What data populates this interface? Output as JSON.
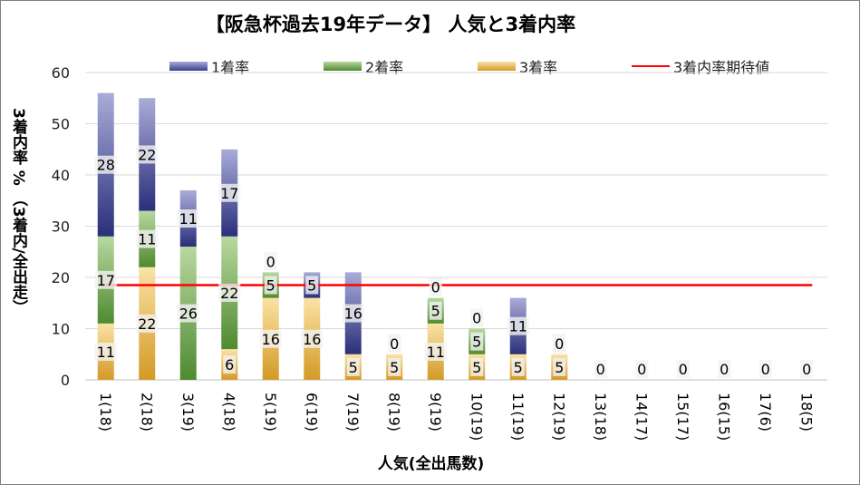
{
  "chart_data": {
    "type": "bar",
    "stacked": true,
    "title": "【阪急杯過去19年データ】 人気と3着内率",
    "xlabel": "人気(全出馬数)",
    "ylabel": "3着内率 % （3着内/全出走）",
    "ylim": [
      0,
      60
    ],
    "yticks": [
      0,
      10,
      20,
      30,
      40,
      50,
      60
    ],
    "categories": [
      "1(18)",
      "2(18)",
      "3(19)",
      "4(18)",
      "5(19)",
      "6(19)",
      "7(19)",
      "8(19)",
      "9(19)",
      "10(19)",
      "11(19)",
      "12(19)",
      "13(18)",
      "14(17)",
      "15(17)",
      "16(15)",
      "17(6)",
      "18(5)"
    ],
    "series": [
      {
        "name": "3着率",
        "color": "#e0a92a",
        "values": [
          11,
          22,
          0,
          6,
          16,
          16,
          5,
          5,
          11,
          5,
          5,
          5,
          0,
          0,
          0,
          0,
          0,
          0
        ]
      },
      {
        "name": "2着率",
        "color": "#5e9a3c",
        "values": [
          17,
          11,
          26,
          22,
          5,
          0,
          0,
          0,
          5,
          5,
          0,
          0,
          0,
          0,
          0,
          0,
          0,
          0
        ]
      },
      {
        "name": "1着率",
        "color": "#3b3f8c",
        "values": [
          28,
          22,
          11,
          17,
          0,
          5,
          16,
          0,
          0,
          0,
          11,
          0,
          0,
          0,
          0,
          0,
          0,
          0
        ]
      }
    ],
    "reference_line": {
      "name": "3着内率期待値",
      "value": 18.5,
      "color": "#ff0000"
    },
    "label_rule": "zero labels shown only on the series at the top of each stack",
    "grid": true,
    "legend_position": "top"
  },
  "legend": {
    "win": "1着率",
    "second": "2着率",
    "third": "3着率",
    "expected": "3着内率期待値"
  }
}
